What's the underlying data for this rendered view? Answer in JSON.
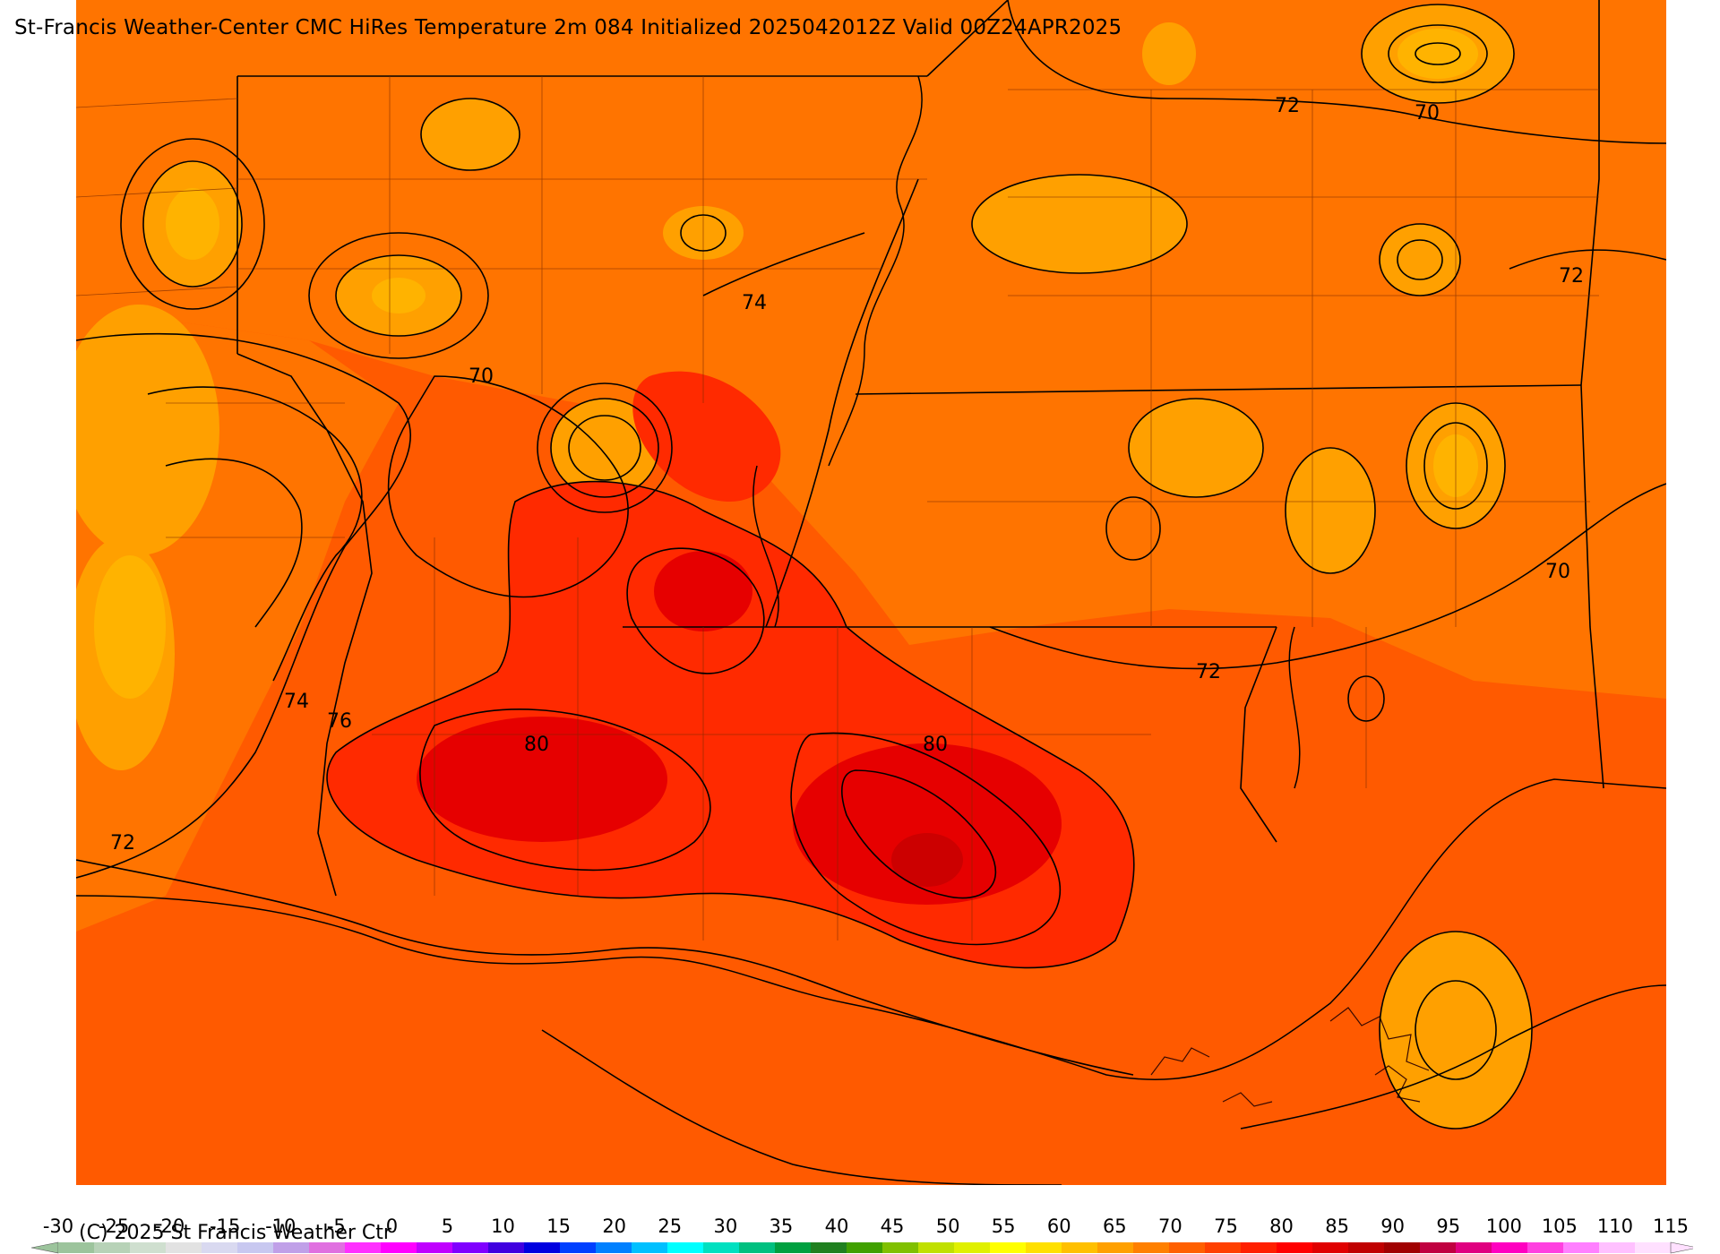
{
  "header": {
    "title": "St-Francis Weather-Center CMC HiRes Temperature 2m  084 Initialized 2025042012Z Valid 00Z24APR2025"
  },
  "map": {
    "contour_labels": [
      "74",
      "70",
      "72",
      "70",
      "72",
      "70",
      "72",
      "74",
      "76",
      "80",
      "80",
      "72"
    ]
  },
  "colorbar": {
    "ticks": [
      "-30",
      "-25",
      "-20",
      "-15",
      "-10",
      "-5",
      "0",
      "5",
      "10",
      "15",
      "20",
      "25",
      "30",
      "35",
      "40",
      "45",
      "50",
      "55",
      "60",
      "65",
      "70",
      "75",
      "80",
      "85",
      "90",
      "95",
      "100",
      "105",
      "110",
      "115"
    ],
    "colors": [
      "#9cc49c",
      "#b7d2b7",
      "#cfdfcf",
      "#e2e2e2",
      "#d9d9f0",
      "#c8c8f0",
      "#c0a0e8",
      "#e070e0",
      "#ff30ff",
      "#ff00ff",
      "#c000ff",
      "#8000ff",
      "#4000e0",
      "#0000e0",
      "#0040ff",
      "#0080ff",
      "#00c0ff",
      "#00ffff",
      "#00e0c0",
      "#00c080",
      "#00a040",
      "#208020",
      "#40a000",
      "#80c000",
      "#c0e000",
      "#e0f000",
      "#ffff00",
      "#ffe000",
      "#ffc000",
      "#ffa000",
      "#ff8000",
      "#ff6000",
      "#ff4000",
      "#ff2000",
      "#ff0000",
      "#e00000",
      "#c00000",
      "#a00000",
      "#c00040",
      "#e00080",
      "#ff00c0",
      "#ff40e0",
      "#ff80ff",
      "#ffc0ff",
      "#ffe0ff"
    ]
  },
  "footer": {
    "copyright": "(C) 2025 St Francis Weather Ctr"
  }
}
